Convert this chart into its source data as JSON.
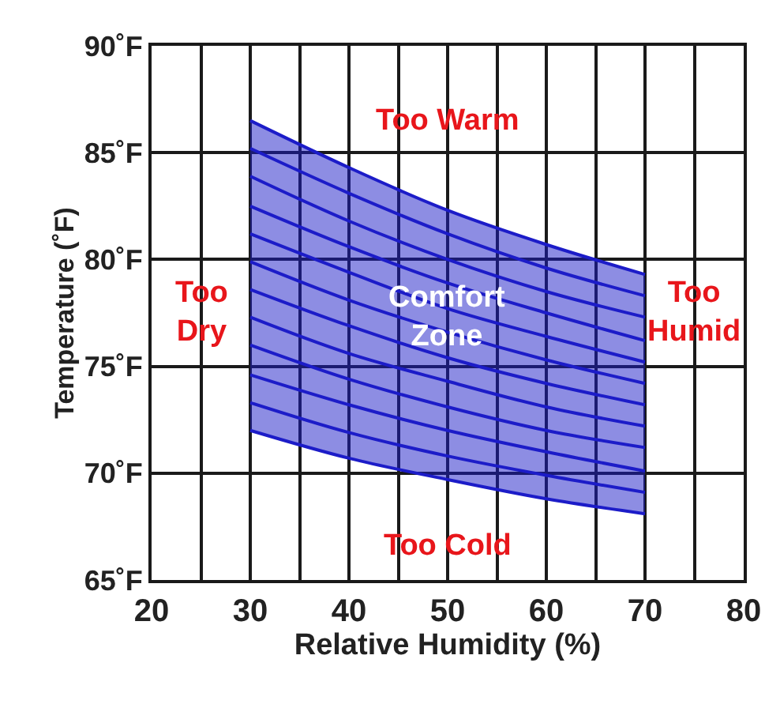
{
  "chart_data": {
    "type": "line",
    "xlabel": "Relative Humidity (%)",
    "ylabel": "Temperature (˚F)",
    "x": [
      30,
      40,
      50,
      60,
      70
    ],
    "series": [
      {
        "color": "#1c1cc8",
        "values": [
          72.0,
          70.7,
          69.7,
          68.8,
          68.1
        ]
      },
      {
        "color": "#1c1cc8",
        "values": [
          73.3,
          71.9,
          70.8,
          69.9,
          69.1
        ]
      },
      {
        "color": "#1c1cc8",
        "values": [
          74.6,
          73.2,
          72.0,
          71.0,
          70.1
        ]
      },
      {
        "color": "#1c1cc8",
        "values": [
          76.0,
          74.4,
          73.1,
          72.0,
          71.2
        ]
      },
      {
        "color": "#1c1cc8",
        "values": [
          77.3,
          75.6,
          74.3,
          73.1,
          72.2
        ]
      },
      {
        "color": "#1c1cc8",
        "values": [
          78.6,
          76.9,
          75.4,
          74.2,
          73.2
        ],
        "lower": [
          72.0,
          70.7,
          69.7,
          68.8,
          68.1
        ],
        "upper": [
          86.5,
          84.3,
          82.3,
          80.7,
          79.3
        ]
      },
      {
        "color": "#1c1cc8",
        "values": [
          79.9,
          78.1,
          76.6,
          75.3,
          74.2
        ]
      },
      {
        "color": "#1c1cc8",
        "values": [
          81.2,
          79.4,
          77.7,
          76.4,
          75.2
        ]
      },
      {
        "color": "#1c1cc8",
        "values": [
          82.5,
          80.6,
          78.9,
          77.5,
          76.2
        ]
      },
      {
        "color": "#1c1cc8",
        "values": [
          83.9,
          81.8,
          80.0,
          78.5,
          77.3
        ]
      },
      {
        "color": "#1c1cc8",
        "values": [
          85.2,
          83.1,
          81.2,
          79.6,
          78.3
        ]
      },
      {
        "color": "#1c1cc8",
        "values": [
          86.5,
          84.3,
          82.3,
          80.7,
          79.3
        ]
      }
    ],
    "xlim": [
      20,
      80
    ],
    "xticks": [
      20,
      {
        "value": 25,
        "label": null
      },
      30,
      {
        "value": 35,
        "label": null
      },
      40,
      {
        "value": 45,
        "label": null
      },
      50,
      {
        "value": 55,
        "label": null
      },
      60,
      {
        "value": 65,
        "label": null
      },
      70,
      {
        "value": 75,
        "label": null
      },
      80
    ],
    "ylim": [
      65,
      90
    ],
    "yticks": [
      {
        "value": 65,
        "label": "65˚F"
      },
      {
        "value": 70,
        "label": "70˚F"
      },
      {
        "value": 75,
        "label": "75˚F"
      },
      {
        "value": 80,
        "label": "80˚F"
      },
      {
        "value": 85,
        "label": "85˚F"
      },
      {
        "value": 90,
        "label": "90˚F"
      }
    ],
    "grid": true,
    "marker": "none",
    "line_style": "solid",
    "annotations": [
      "Too Warm",
      "Too Dry",
      "Comfort Zone",
      "Too Humid",
      "Too Cold"
    ]
  }
}
